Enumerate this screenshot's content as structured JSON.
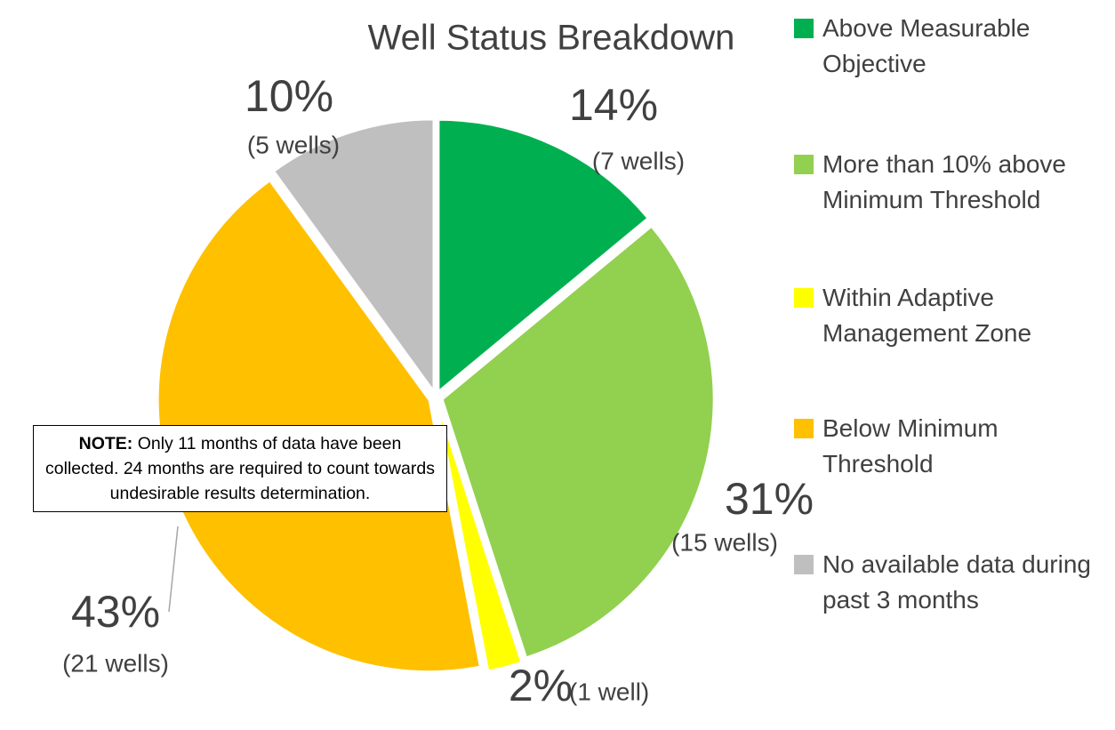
{
  "chart_data": {
    "type": "pie",
    "title": "Well Status Breakdown",
    "categories": [
      "Above Measurable Objective",
      "More than 10% above Minimum Threshold",
      "Within Adaptive Management Zone",
      "Below Minimum Threshold",
      "No available data during past 3 months"
    ],
    "values": [
      14,
      31,
      2,
      43,
      10
    ],
    "value_labels": [
      "14%",
      "31%",
      "2%",
      "43%",
      "10%"
    ],
    "sublabels": [
      "(7 wells)",
      "(15 wells)",
      "(1 well)",
      "(21 wells)",
      "(5 wells)"
    ],
    "colors": [
      "#00b050",
      "#92d050",
      "#ffff00",
      "#ffc000",
      "#bfbfbf"
    ],
    "legend": "right",
    "note": {
      "label": "NOTE:",
      "text": "Only 11 months of data have been collected. 24 months are required to count towards undesirable results determination."
    }
  }
}
